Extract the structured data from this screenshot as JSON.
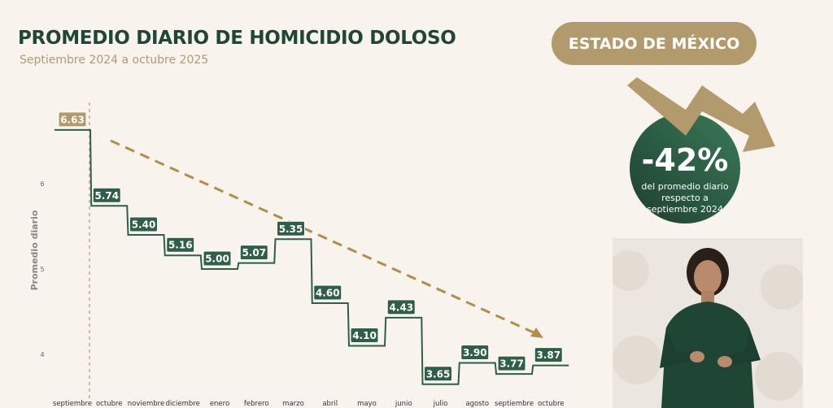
{
  "header": {
    "title": "PROMEDIO DIARIO DE HOMICIDIO DOLOSO",
    "subtitle": "Septiembre 2024 a octubre 2025",
    "region": "ESTADO DE MÉXICO"
  },
  "badge": {
    "percent": "-42%",
    "line1": "del promedio diario",
    "line2": "respecto a",
    "line3": "septiembre 2024",
    "icon": "down-trend-arrow-icon"
  },
  "colors": {
    "green": "#2f5f48",
    "gold": "#b39a6d",
    "trend": "#b08f48",
    "background": "#f8f3ec"
  },
  "chart_data": {
    "type": "step-line",
    "title": "PROMEDIO DIARIO DE HOMICIDIO DOLOSO",
    "ylabel": "Promedio diario",
    "xlabel": "",
    "ylim": [
      3.4,
      6.9
    ],
    "yticks": [
      4,
      5,
      6
    ],
    "categories": [
      "septiembre",
      "octubre",
      "noviembre",
      "diciembre",
      "enero",
      "febrero",
      "marzo",
      "abril",
      "mayo",
      "junio",
      "julio",
      "agosto",
      "septiembre",
      "octubre"
    ],
    "values": [
      6.63,
      5.74,
      5.4,
      5.16,
      5.0,
      5.07,
      5.35,
      4.6,
      4.1,
      4.43,
      3.65,
      3.9,
      3.77,
      3.87
    ],
    "labels": [
      "6.63",
      "5.74",
      "5.40",
      "5.16",
      "5.00",
      "5.07",
      "5.35",
      "4.60",
      "4.10",
      "4.43",
      "3.65",
      "3.90",
      "3.77",
      "3.87"
    ],
    "trend": "dashed downward arrow from octubre to octubre",
    "reference_line": "dashed vertical line after septiembre",
    "grid": false
  }
}
